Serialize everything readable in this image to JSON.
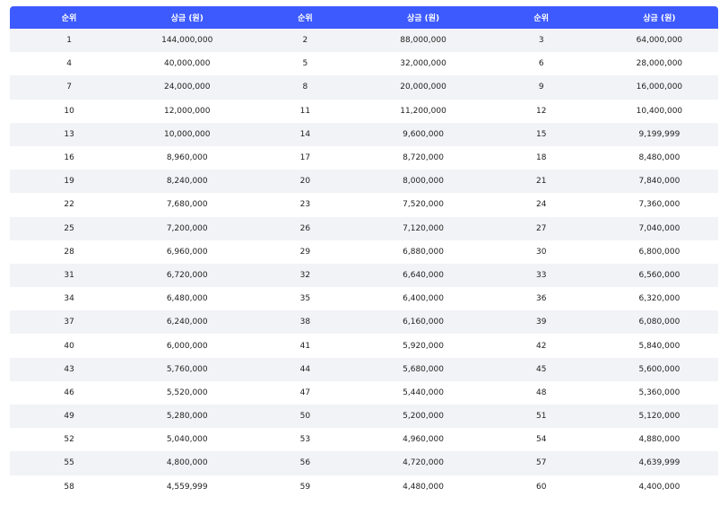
{
  "table": {
    "headers": [
      "순위",
      "상금 (원)",
      "순위",
      "상금 (원)",
      "순위",
      "상금 (원)"
    ],
    "rows": [
      [
        "1",
        "144,000,000",
        "2",
        "88,000,000",
        "3",
        "64,000,000"
      ],
      [
        "4",
        "40,000,000",
        "5",
        "32,000,000",
        "6",
        "28,000,000"
      ],
      [
        "7",
        "24,000,000",
        "8",
        "20,000,000",
        "9",
        "16,000,000"
      ],
      [
        "10",
        "12,000,000",
        "11",
        "11,200,000",
        "12",
        "10,400,000"
      ],
      [
        "13",
        "10,000,000",
        "14",
        "9,600,000",
        "15",
        "9,199,999"
      ],
      [
        "16",
        "8,960,000",
        "17",
        "8,720,000",
        "18",
        "8,480,000"
      ],
      [
        "19",
        "8,240,000",
        "20",
        "8,000,000",
        "21",
        "7,840,000"
      ],
      [
        "22",
        "7,680,000",
        "23",
        "7,520,000",
        "24",
        "7,360,000"
      ],
      [
        "25",
        "7,200,000",
        "26",
        "7,120,000",
        "27",
        "7,040,000"
      ],
      [
        "28",
        "6,960,000",
        "29",
        "6,880,000",
        "30",
        "6,800,000"
      ],
      [
        "31",
        "6,720,000",
        "32",
        "6,640,000",
        "33",
        "6,560,000"
      ],
      [
        "34",
        "6,480,000",
        "35",
        "6,400,000",
        "36",
        "6,320,000"
      ],
      [
        "37",
        "6,240,000",
        "38",
        "6,160,000",
        "39",
        "6,080,000"
      ],
      [
        "40",
        "6,000,000",
        "41",
        "5,920,000",
        "42",
        "5,840,000"
      ],
      [
        "43",
        "5,760,000",
        "44",
        "5,680,000",
        "45",
        "5,600,000"
      ],
      [
        "46",
        "5,520,000",
        "47",
        "5,440,000",
        "48",
        "5,360,000"
      ],
      [
        "49",
        "5,280,000",
        "50",
        "5,200,000",
        "51",
        "5,120,000"
      ],
      [
        "52",
        "5,040,000",
        "53",
        "4,960,000",
        "54",
        "4,880,000"
      ],
      [
        "55",
        "4,800,000",
        "56",
        "4,720,000",
        "57",
        "4,639,999"
      ],
      [
        "58",
        "4,559,999",
        "59",
        "4,480,000",
        "60",
        "4,400,000"
      ]
    ]
  },
  "colors": {
    "header_bg": "#3d5afe",
    "header_text": "#ffffff",
    "stripe_bg": "#f2f3f6",
    "row_bg": "#ffffff",
    "text": "#222222"
  }
}
